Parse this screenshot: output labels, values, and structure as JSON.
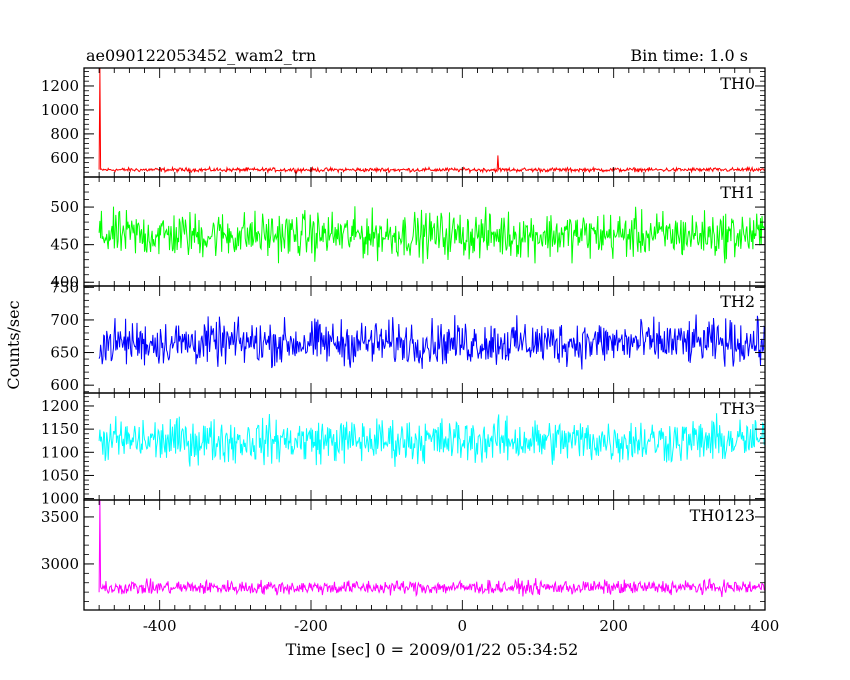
{
  "header": {
    "title": "ae090122053452_wam2_trn",
    "bin_time": "Bin time: 1.0 s"
  },
  "chart_data": {
    "type": "line",
    "title": "ae090122053452_wam2_trn",
    "xlabel": "Time [sec] 0 = 2009/01/22 05:34:52",
    "ylabel": "Counts/sec",
    "xlim": [
      -500,
      400
    ],
    "x_ticks": [
      -400,
      -200,
      0,
      200,
      400
    ],
    "x_data_range": [
      -480,
      400
    ],
    "bin_time": 1.0,
    "series": [
      {
        "name": "TH0",
        "color": "#ff0000",
        "ylim": [
          440,
          1350
        ],
        "y_ticks": [
          600,
          800,
          1000,
          1200
        ],
        "baseline": 500,
        "noise_amplitude": 25,
        "spikes": [
          {
            "x": -479,
            "y": 1350
          },
          {
            "x": 47,
            "y": 620
          }
        ]
      },
      {
        "name": "TH1",
        "color": "#00ff00",
        "ylim": [
          395,
          540
        ],
        "y_ticks": [
          400,
          450,
          500
        ],
        "baseline": 463,
        "noise_amplitude": 45
      },
      {
        "name": "TH2",
        "color": "#0000ff",
        "ylim": [
          588,
          752
        ],
        "y_ticks": [
          600,
          650,
          700,
          750
        ],
        "baseline": 665,
        "noise_amplitude": 50
      },
      {
        "name": "TH3",
        "color": "#00ffff",
        "ylim": [
          997,
          1228
        ],
        "y_ticks": [
          1000,
          1050,
          1100,
          1150,
          1200
        ],
        "baseline": 1125,
        "noise_amplitude": 70
      },
      {
        "name": "TH0123",
        "color": "#ff00ff",
        "ylim": [
          2510,
          3680
        ],
        "y_ticks": [
          3000,
          3500
        ],
        "baseline": 2750,
        "noise_amplitude": 110,
        "spikes": [
          {
            "x": -479,
            "y": 3680
          }
        ]
      }
    ]
  }
}
